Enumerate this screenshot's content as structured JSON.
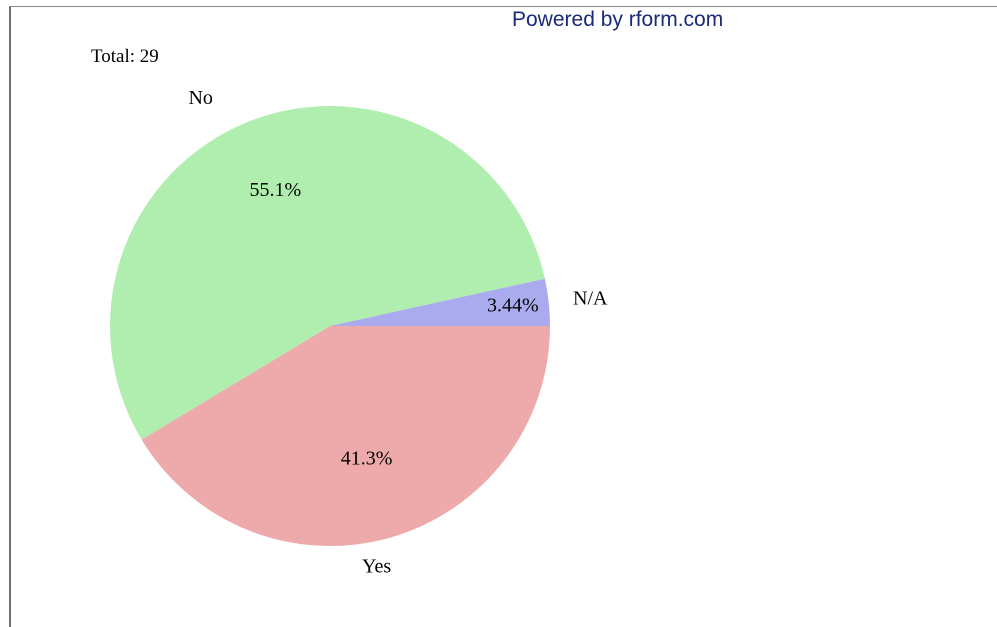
{
  "header": {
    "powered_by": "Powered by rform.com"
  },
  "chart_data": {
    "type": "pie",
    "total_label": "Total: 29",
    "slices": [
      {
        "label": "Yes",
        "percent_label": "41.3%",
        "value": 41.3,
        "color": "#eeaaaa"
      },
      {
        "label": "No",
        "percent_label": "55.1%",
        "value": 55.1,
        "color": "#b0eeb0"
      },
      {
        "label": "N/A",
        "percent_label": "3.44%",
        "value": 3.44,
        "color": "#aaaaee"
      }
    ]
  }
}
